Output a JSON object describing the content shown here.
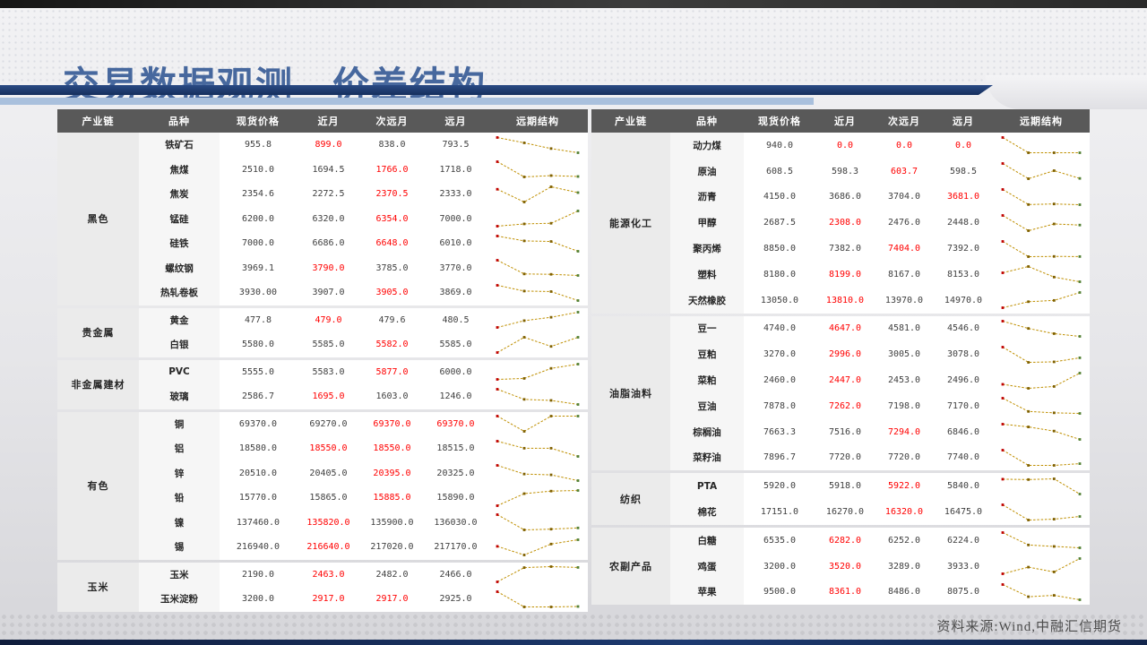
{
  "slide": {
    "title": "交易数据观测—价差结构",
    "footer": "资料来源:Wind,中融汇信期货"
  },
  "columns": [
    "产业链",
    "品种",
    "现货价格",
    "近月",
    "次远月",
    "远月",
    "远期结构"
  ],
  "colors": {
    "accent_blue": "#1d3a70",
    "title_blue": "#47689e",
    "header_gray": "#595959",
    "red_value": "#ff0000",
    "spark_line": "#bf8f00",
    "spark_first": "#c00000",
    "spark_mid": "#7f6000",
    "spark_last": "#538135"
  },
  "tables": [
    {
      "id": "table-left",
      "sections": [
        {
          "chain": "黑色",
          "rows": [
            {
              "name": "铁矿石",
              "values": [
                "955.8",
                "899.0",
                "838.0",
                "793.5"
              ],
              "red": [
                0,
                1,
                0,
                0
              ]
            },
            {
              "name": "焦煤",
              "values": [
                "2510.0",
                "1694.5",
                "1766.0",
                "1718.0"
              ],
              "red": [
                0,
                0,
                1,
                0
              ]
            },
            {
              "name": "焦炭",
              "values": [
                "2354.6",
                "2272.5",
                "2370.5",
                "2333.0"
              ],
              "red": [
                0,
                0,
                1,
                0
              ]
            },
            {
              "name": "锰硅",
              "values": [
                "6200.0",
                "6320.0",
                "6354.0",
                "7000.0"
              ],
              "red": [
                0,
                0,
                1,
                0
              ]
            },
            {
              "name": "硅铁",
              "values": [
                "7000.0",
                "6686.0",
                "6648.0",
                "6010.0"
              ],
              "red": [
                0,
                0,
                1,
                0
              ]
            },
            {
              "name": "螺纹钢",
              "values": [
                "3969.1",
                "3790.0",
                "3785.0",
                "3770.0"
              ],
              "red": [
                0,
                1,
                0,
                0
              ]
            },
            {
              "name": "热轧卷板",
              "values": [
                "3930.00",
                "3907.0",
                "3905.0",
                "3869.0"
              ],
              "red": [
                0,
                0,
                1,
                0
              ]
            }
          ]
        },
        {
          "chain": "贵金属",
          "rows": [
            {
              "name": "黄金",
              "values": [
                "477.8",
                "479.0",
                "479.6",
                "480.5"
              ],
              "red": [
                0,
                1,
                0,
                0
              ]
            },
            {
              "name": "白银",
              "values": [
                "5580.0",
                "5585.0",
                "5582.0",
                "5585.0"
              ],
              "red": [
                0,
                0,
                1,
                0
              ]
            }
          ]
        },
        {
          "chain": "非金属建材",
          "rows": [
            {
              "name": "PVC",
              "values": [
                "5555.0",
                "5583.0",
                "5877.0",
                "6000.0"
              ],
              "red": [
                0,
                0,
                1,
                0
              ]
            },
            {
              "name": "玻璃",
              "values": [
                "2586.7",
                "1695.0",
                "1603.0",
                "1246.0"
              ],
              "red": [
                0,
                1,
                0,
                0
              ]
            }
          ]
        },
        {
          "chain": "有色",
          "rows": [
            {
              "name": "铜",
              "values": [
                "69370.0",
                "69270.0",
                "69370.0",
                "69370.0"
              ],
              "red": [
                0,
                0,
                1,
                1
              ]
            },
            {
              "name": "铝",
              "values": [
                "18580.0",
                "18550.0",
                "18550.0",
                "18515.0"
              ],
              "red": [
                0,
                1,
                1,
                0
              ]
            },
            {
              "name": "锌",
              "values": [
                "20510.0",
                "20405.0",
                "20395.0",
                "20325.0"
              ],
              "red": [
                0,
                0,
                1,
                0
              ]
            },
            {
              "name": "铅",
              "values": [
                "15770.0",
                "15865.0",
                "15885.0",
                "15890.0"
              ],
              "red": [
                0,
                0,
                1,
                0
              ]
            },
            {
              "name": "镍",
              "values": [
                "137460.0",
                "135820.0",
                "135900.0",
                "136030.0"
              ],
              "red": [
                0,
                1,
                0,
                0
              ]
            },
            {
              "name": "锡",
              "values": [
                "216940.0",
                "216640.0",
                "217020.0",
                "217170.0"
              ],
              "red": [
                0,
                1,
                0,
                0
              ]
            }
          ]
        },
        {
          "chain": "玉米",
          "rows": [
            {
              "name": "玉米",
              "values": [
                "2190.0",
                "2463.0",
                "2482.0",
                "2466.0"
              ],
              "red": [
                0,
                1,
                0,
                0
              ]
            },
            {
              "name": "玉米淀粉",
              "values": [
                "3200.0",
                "2917.0",
                "2917.0",
                "2925.0"
              ],
              "red": [
                0,
                1,
                1,
                0
              ]
            }
          ]
        }
      ]
    },
    {
      "id": "table-right",
      "sections": [
        {
          "chain": "能源化工",
          "rows": [
            {
              "name": "动力煤",
              "values": [
                "940.0",
                "0.0",
                "0.0",
                "0.0"
              ],
              "red": [
                0,
                1,
                1,
                1
              ]
            },
            {
              "name": "原油",
              "values": [
                "608.5",
                "598.3",
                "603.7",
                "598.5"
              ],
              "red": [
                0,
                0,
                1,
                0
              ]
            },
            {
              "name": "沥青",
              "values": [
                "4150.0",
                "3686.0",
                "3704.0",
                "3681.0"
              ],
              "red": [
                0,
                0,
                0,
                1
              ]
            },
            {
              "name": "甲醇",
              "values": [
                "2687.5",
                "2308.0",
                "2476.0",
                "2448.0"
              ],
              "red": [
                0,
                1,
                0,
                0
              ]
            },
            {
              "name": "聚丙烯",
              "values": [
                "8850.0",
                "7382.0",
                "7404.0",
                "7392.0"
              ],
              "red": [
                0,
                0,
                1,
                0
              ]
            },
            {
              "name": "塑料",
              "values": [
                "8180.0",
                "8199.0",
                "8167.0",
                "8153.0"
              ],
              "red": [
                0,
                1,
                0,
                0
              ]
            },
            {
              "name": "天然橡胶",
              "values": [
                "13050.0",
                "13810.0",
                "13970.0",
                "14970.0"
              ],
              "red": [
                0,
                1,
                0,
                0
              ]
            }
          ]
        },
        {
          "chain": "油脂油料",
          "rows": [
            {
              "name": "豆一",
              "values": [
                "4740.0",
                "4647.0",
                "4581.0",
                "4546.0"
              ],
              "red": [
                0,
                1,
                0,
                0
              ]
            },
            {
              "name": "豆粕",
              "values": [
                "3270.0",
                "2996.0",
                "3005.0",
                "3078.0"
              ],
              "red": [
                0,
                1,
                0,
                0
              ]
            },
            {
              "name": "菜粕",
              "values": [
                "2460.0",
                "2447.0",
                "2453.0",
                "2496.0"
              ],
              "red": [
                0,
                1,
                0,
                0
              ]
            },
            {
              "name": "豆油",
              "values": [
                "7878.0",
                "7262.0",
                "7198.0",
                "7170.0"
              ],
              "red": [
                0,
                1,
                0,
                0
              ]
            },
            {
              "name": "棕榈油",
              "values": [
                "7663.3",
                "7516.0",
                "7294.0",
                "6846.0"
              ],
              "red": [
                0,
                0,
                1,
                0
              ]
            },
            {
              "name": "菜籽油",
              "values": [
                "7896.7",
                "7720.0",
                "7720.0",
                "7740.0"
              ],
              "red": [
                0,
                0,
                0,
                0
              ]
            }
          ]
        },
        {
          "chain": "纺织",
          "rows": [
            {
              "name": "PTA",
              "values": [
                "5920.0",
                "5918.0",
                "5922.0",
                "5840.0"
              ],
              "red": [
                0,
                0,
                1,
                0
              ]
            },
            {
              "name": "棉花",
              "values": [
                "17151.0",
                "16270.0",
                "16320.0",
                "16475.0"
              ],
              "red": [
                0,
                0,
                1,
                0
              ]
            }
          ]
        },
        {
          "chain": "农副产品",
          "rows": [
            {
              "name": "白糖",
              "values": [
                "6535.0",
                "6282.0",
                "6252.0",
                "6224.0"
              ],
              "red": [
                0,
                1,
                0,
                0
              ]
            },
            {
              "name": "鸡蛋",
              "values": [
                "3200.0",
                "3520.0",
                "3289.0",
                "3933.0"
              ],
              "red": [
                0,
                1,
                0,
                0
              ]
            },
            {
              "name": "苹果",
              "values": [
                "9500.0",
                "8361.0",
                "8486.0",
                "8075.0"
              ],
              "red": [
                0,
                1,
                0,
                0
              ]
            }
          ]
        }
      ]
    }
  ]
}
